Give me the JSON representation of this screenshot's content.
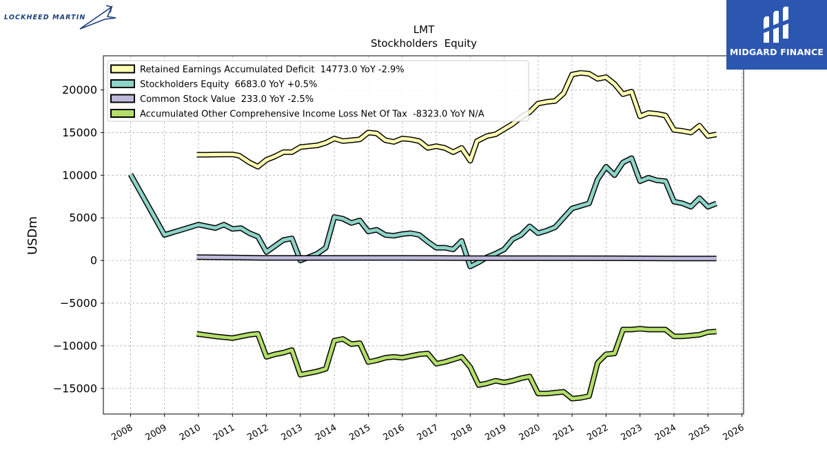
{
  "logos": {
    "left_brand": "LOCKHEED MARTIN",
    "right_brand": "MIDGARD FINANCE",
    "right_brand_color": "#2b57b0"
  },
  "chart_data": {
    "type": "line",
    "title": "LMT",
    "subtitle": "Stockholders  Equity",
    "xlabel": "",
    "ylabel": "USDm",
    "xlim": [
      2007.2,
      2026.05
    ],
    "ylim": [
      -18000,
      24000
    ],
    "x_ticks": [
      "2008",
      "2009",
      "2010",
      "2011",
      "2012",
      "2013",
      "2014",
      "2015",
      "2016",
      "2017",
      "2018",
      "2019",
      "2020",
      "2021",
      "2022",
      "2023",
      "2024",
      "2025",
      "2026"
    ],
    "y_ticks": [
      -15000,
      -10000,
      -5000,
      0,
      5000,
      10000,
      15000,
      20000
    ],
    "y_tick_labels": [
      "−15000",
      "−10000",
      "−5000",
      "0",
      "5000",
      "10000",
      "15000",
      "20000"
    ],
    "grid": true,
    "legend_position": "top-left",
    "series": [
      {
        "name": "Retained Earnings Accumulated Deficit  14773.0 YoY -2.9%",
        "color": "#ffffb3",
        "x": [
          2009.95,
          2010.25,
          2010.5,
          2010.75,
          2011.0,
          2011.2,
          2011.5,
          2011.75,
          2012.0,
          2012.25,
          2012.5,
          2012.75,
          2013.0,
          2013.25,
          2013.5,
          2013.75,
          2014.0,
          2014.25,
          2014.5,
          2014.75,
          2015.0,
          2015.25,
          2015.5,
          2015.75,
          2016.0,
          2016.25,
          2016.5,
          2016.75,
          2017.0,
          2017.25,
          2017.5,
          2017.75,
          2018.0,
          2018.2,
          2018.5,
          2018.75,
          2019.0,
          2019.25,
          2019.5,
          2019.75,
          2020.0,
          2020.25,
          2020.5,
          2020.75,
          2021.0,
          2021.25,
          2021.5,
          2021.75,
          2022.0,
          2022.25,
          2022.5,
          2022.75,
          2023.0,
          2023.25,
          2023.5,
          2023.75,
          2024.0,
          2024.25,
          2024.5,
          2024.75,
          2025.0,
          2025.25
        ],
        "y": [
          12400,
          12400,
          12420,
          12430,
          12430,
          12300,
          11500,
          11000,
          11800,
          12200,
          12700,
          12700,
          13300,
          13400,
          13500,
          13800,
          14300,
          14000,
          14100,
          14200,
          15000,
          14900,
          14100,
          13900,
          14300,
          14200,
          14000,
          13200,
          13400,
          13200,
          12700,
          13200,
          11700,
          14000,
          14600,
          14800,
          15400,
          16000,
          16800,
          17400,
          18400,
          18600,
          18700,
          19600,
          21800,
          22000,
          21900,
          21300,
          21500,
          20700,
          19500,
          19800,
          16900,
          17300,
          17200,
          17000,
          15300,
          15200,
          15000,
          15800,
          14600,
          14773
        ]
      },
      {
        "name": "Stockholders Equity  6683.0 YoY +0.5%",
        "color": "#8dd3c7",
        "x": [
          2008.0,
          2009.0,
          2010.0,
          2010.5,
          2010.75,
          2011.0,
          2011.25,
          2011.5,
          2011.75,
          2012.0,
          2012.5,
          2012.75,
          2013.0,
          2013.25,
          2013.5,
          2013.75,
          2014.0,
          2014.25,
          2014.5,
          2014.75,
          2015.0,
          2015.25,
          2015.5,
          2015.75,
          2016.0,
          2016.25,
          2016.5,
          2016.75,
          2017.0,
          2017.25,
          2017.5,
          2017.75,
          2018.0,
          2018.25,
          2018.5,
          2018.75,
          2019.0,
          2019.25,
          2019.5,
          2019.75,
          2020.0,
          2020.25,
          2020.5,
          2020.75,
          2021.0,
          2021.25,
          2021.5,
          2021.75,
          2022.0,
          2022.25,
          2022.5,
          2022.75,
          2023.0,
          2023.25,
          2023.5,
          2023.75,
          2024.0,
          2024.25,
          2024.5,
          2024.75,
          2025.0,
          2025.25
        ],
        "y": [
          10100,
          3000,
          4200,
          3800,
          4200,
          3700,
          3800,
          3200,
          2800,
          1000,
          2400,
          2600,
          0,
          400,
          800,
          1500,
          5100,
          4900,
          4400,
          4700,
          3400,
          3600,
          3000,
          2900,
          3100,
          3200,
          3000,
          2200,
          1500,
          1500,
          1300,
          2300,
          -700,
          -200,
          400,
          800,
          1300,
          2500,
          3000,
          4000,
          3200,
          3500,
          3900,
          5000,
          6100,
          6400,
          6700,
          9500,
          11000,
          10000,
          11500,
          12000,
          9300,
          9700,
          9400,
          9300,
          6900,
          6700,
          6300,
          7300,
          6300,
          6683
        ]
      },
      {
        "name": "Common Stock Value  233.0 YoY -2.5%",
        "color": "#bebada",
        "x": [
          2009.95,
          2011.0,
          2012.0,
          2014.0,
          2016.0,
          2018.0,
          2020.0,
          2022.0,
          2024.0,
          2025.25
        ],
        "y": [
          400,
          350,
          300,
          300,
          300,
          280,
          270,
          260,
          240,
          233
        ]
      },
      {
        "name": "Accumulated Other Comprehensive Income Loss Net Of Tax  -8323.0 YoY N/A",
        "color": "#b3de69",
        "x": [
          2009.95,
          2010.5,
          2011.0,
          2011.5,
          2011.75,
          2012.0,
          2012.25,
          2012.5,
          2012.75,
          2013.0,
          2013.25,
          2013.5,
          2013.75,
          2014.0,
          2014.25,
          2014.5,
          2014.75,
          2015.0,
          2015.25,
          2015.5,
          2015.75,
          2016.0,
          2016.25,
          2016.5,
          2016.75,
          2017.0,
          2017.25,
          2017.5,
          2017.75,
          2018.0,
          2018.25,
          2018.5,
          2018.75,
          2019.0,
          2019.25,
          2019.5,
          2019.75,
          2020.0,
          2020.25,
          2020.5,
          2020.75,
          2021.0,
          2021.25,
          2021.5,
          2021.75,
          2022.0,
          2022.25,
          2022.5,
          2022.75,
          2023.0,
          2023.25,
          2023.5,
          2023.75,
          2024.0,
          2024.25,
          2024.5,
          2024.75,
          2025.0,
          2025.25
        ],
        "y": [
          -8600,
          -8900,
          -9100,
          -8700,
          -8600,
          -11300,
          -11000,
          -10800,
          -10500,
          -13400,
          -13200,
          -13000,
          -12700,
          -9400,
          -9200,
          -9800,
          -9700,
          -11900,
          -11700,
          -11400,
          -11300,
          -11400,
          -11200,
          -11000,
          -10900,
          -12100,
          -11900,
          -11600,
          -11300,
          -12500,
          -14600,
          -14400,
          -14100,
          -14300,
          -14100,
          -13800,
          -13600,
          -15600,
          -15600,
          -15500,
          -15400,
          -16200,
          -16100,
          -15900,
          -12000,
          -11000,
          -10900,
          -8100,
          -8100,
          -8000,
          -8100,
          -8100,
          -8100,
          -8900,
          -8900,
          -8800,
          -8700,
          -8400,
          -8323
        ]
      }
    ]
  }
}
